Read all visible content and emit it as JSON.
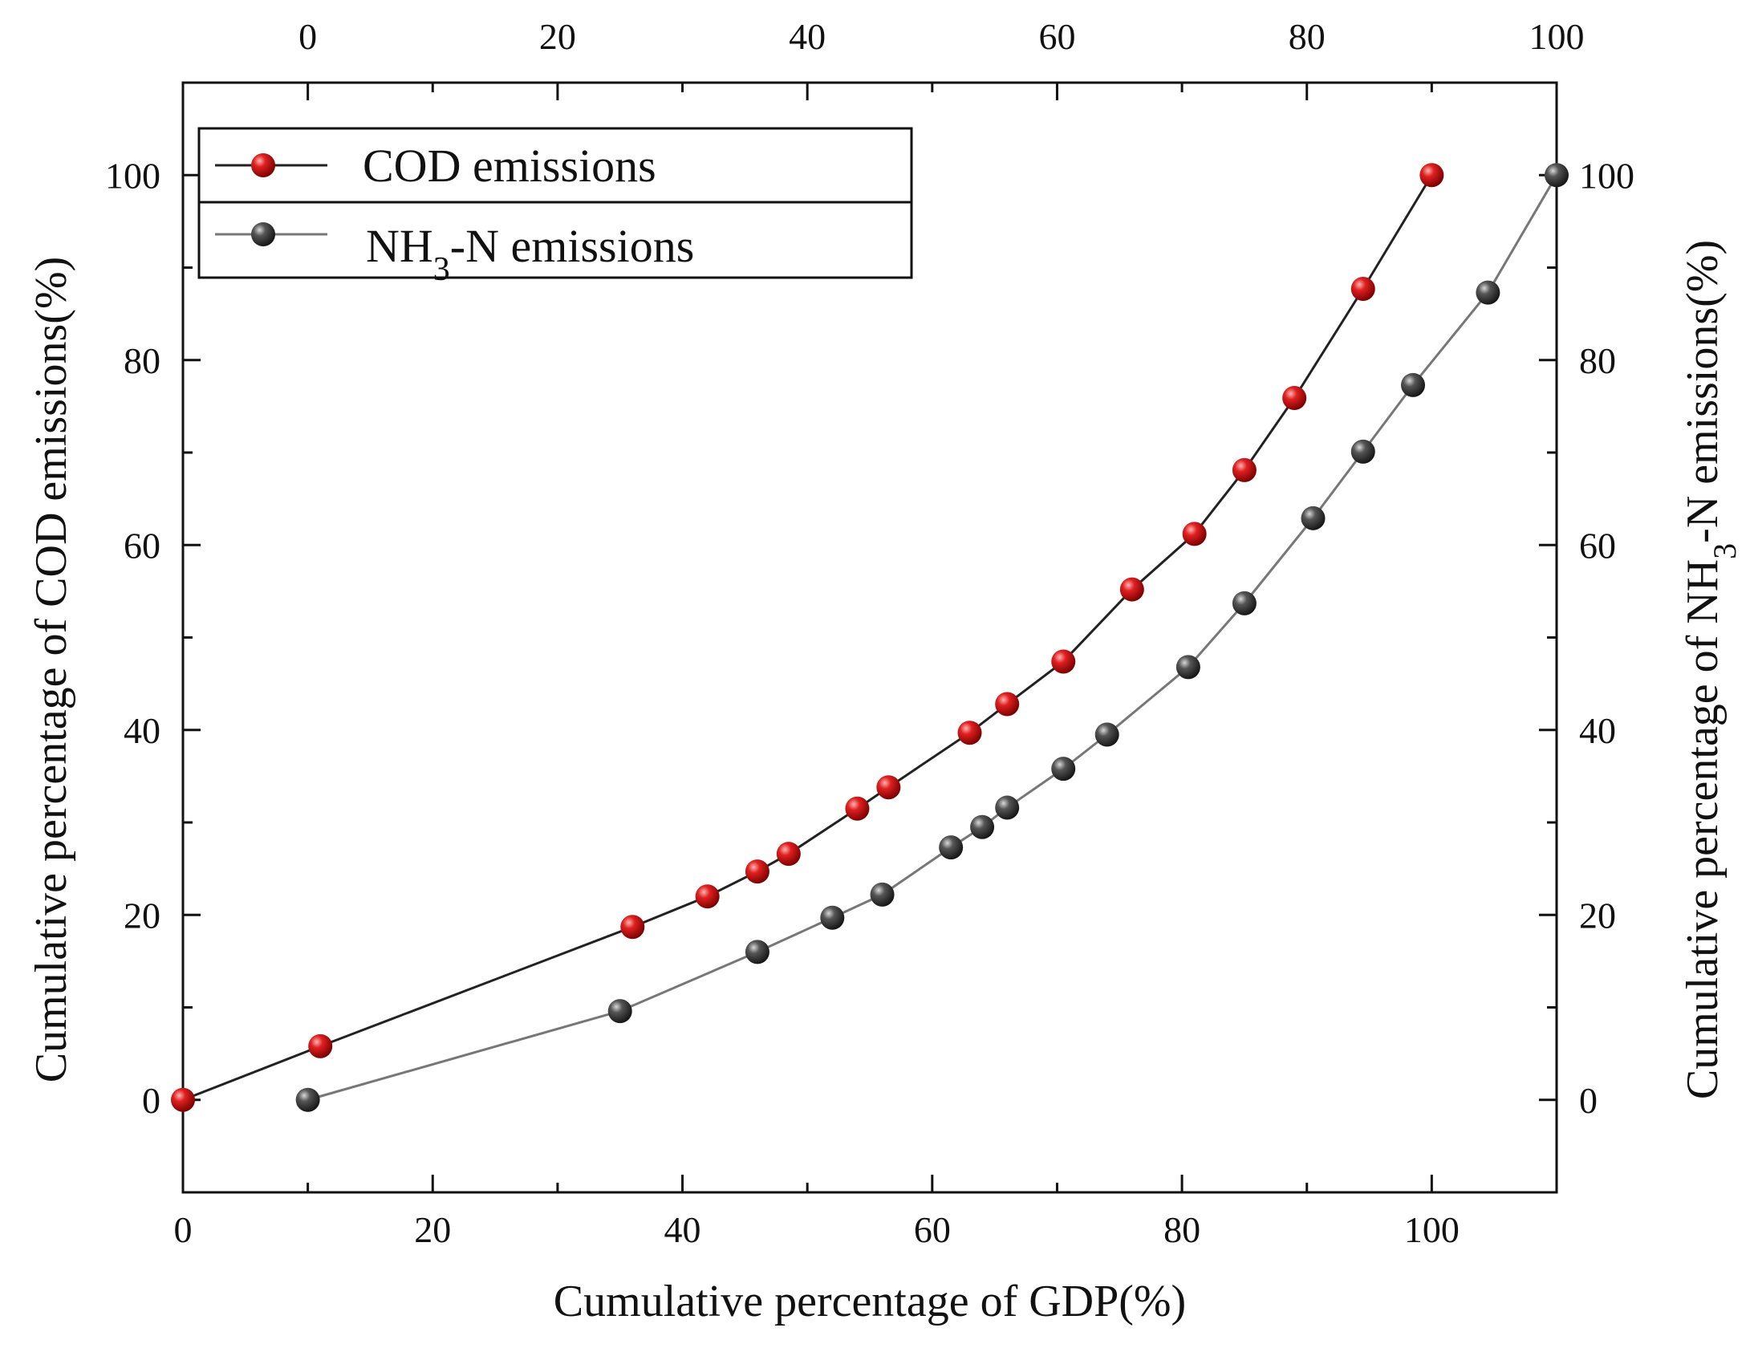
{
  "chart_data": {
    "type": "line",
    "xlabel": "Cumulative percentage of GDP(%)",
    "ylabel": "Cumulative percentage of COD emissions(%)",
    "ylabel_right": {
      "prefix": "Cumulative percentage of NH",
      "subscript": "3",
      "suffix": "-N emissions(%)"
    },
    "x_bottom": {
      "lim": [
        0,
        110
      ],
      "ticks": [
        0,
        20,
        40,
        60,
        80,
        100
      ],
      "labels": [
        "0",
        "20",
        "40",
        "60",
        "80",
        "100"
      ]
    },
    "x_top": {
      "lim": [
        -10,
        100
      ],
      "ticks": [
        0,
        20,
        40,
        60,
        80,
        100
      ],
      "labels": [
        "0",
        "20",
        "40",
        "60",
        "80",
        "100"
      ]
    },
    "y_left": {
      "lim": [
        -10,
        110
      ],
      "ticks": [
        0,
        20,
        40,
        60,
        80,
        100
      ],
      "labels": [
        "0",
        "20",
        "40",
        "60",
        "80",
        "100"
      ]
    },
    "y_right": {
      "lim": [
        -10,
        110
      ],
      "ticks": [
        0,
        20,
        40,
        60,
        80,
        100
      ],
      "labels": [
        "0",
        "20",
        "40",
        "60",
        "80",
        "100"
      ]
    },
    "legend": {
      "position": "top-left",
      "entries": [
        {
          "series": "COD emissions",
          "prefix": "COD emissions",
          "subscript": "",
          "suffix": ""
        },
        {
          "series": "NH3-N emissions",
          "prefix": "NH",
          "subscript": "3",
          "suffix": "-N emissions"
        }
      ]
    },
    "series": [
      {
        "name": "COD emissions",
        "axes": "bottom-left",
        "color": "#d11a1a",
        "line_color": "#222222",
        "x": [
          0,
          11,
          36,
          42,
          46,
          48.5,
          54,
          56.5,
          63,
          66,
          70.5,
          76,
          81,
          85,
          89,
          94.5,
          100
        ],
        "y": [
          0,
          5.8,
          18.7,
          22,
          24.7,
          26.6,
          31.5,
          33.8,
          39.7,
          42.8,
          47.4,
          55.2,
          61.2,
          68.1,
          75.9,
          87.7,
          100
        ]
      },
      {
        "name": "NH3-N emissions",
        "axes": "top-right",
        "color": "#4a4a4a",
        "line_color": "#777777",
        "x": [
          0,
          25,
          36,
          42,
          46,
          51.5,
          54,
          56,
          60.5,
          64,
          70.5,
          75,
          80.5,
          84.5,
          88.5,
          94.5,
          100
        ],
        "y": [
          0,
          9.6,
          16,
          19.7,
          22.2,
          27.3,
          29.5,
          31.6,
          35.8,
          39.5,
          46.8,
          53.7,
          62.9,
          70.1,
          77.3,
          87.3,
          100
        ]
      }
    ]
  }
}
